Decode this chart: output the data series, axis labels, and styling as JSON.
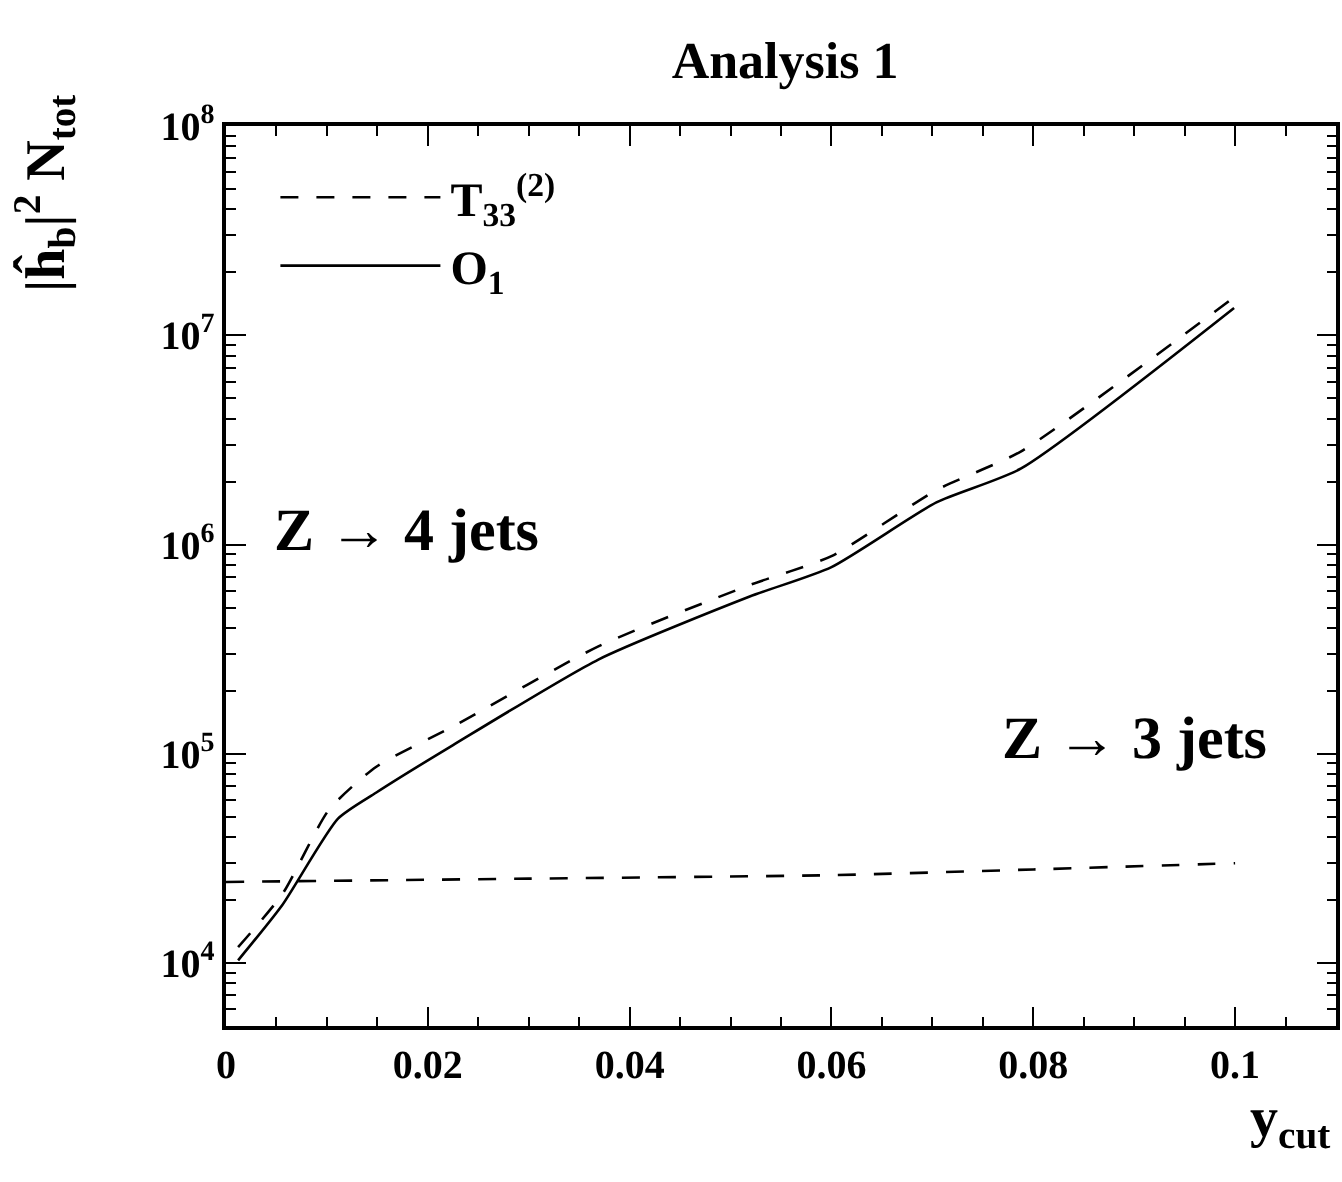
{
  "chart_data": {
    "type": "line",
    "title": "Analysis 1",
    "xlabel": "y$_{cut}$",
    "ylabel": "|ĥ$_{b}$|$^{2}$ N$_{tot}$",
    "annotations": [
      "Z → 4 jets",
      "Z → 3 jets"
    ],
    "series": [
      {
        "name": "T$_{33}$$^{(2)}$",
        "color": "#000000",
        "line_style": "dashed",
        "x": [
          0.0012,
          0.0056,
          0.0102,
          0.0149,
          0.0225,
          0.0369,
          0.0519,
          0.06,
          0.0704,
          0.0788,
          0.0999
        ],
        "values": [
          11900,
          21400,
          54000,
          86700,
          135000,
          326000,
          640000,
          880000,
          1820000,
          2790000,
          15200000
        ]
      },
      {
        "name": "O$_{1}$",
        "color": "#000000",
        "line_style": "solid",
        "x": [
          0.0012,
          0.0056,
          0.0111,
          0.0149,
          0.0225,
          0.0369,
          0.0519,
          0.06,
          0.0704,
          0.0788,
          0.0999
        ],
        "values": [
          10300,
          19000,
          49000,
          65300,
          110000,
          282000,
          564000,
          780000,
          1590000,
          2310000,
          13500000
        ]
      },
      {
        "color": "#000000",
        "line_style": "dashed",
        "x": [
          0,
          0.03,
          0.06,
          0.08,
          0.1
        ],
        "values": [
          24400,
          25300,
          26300,
          28000,
          30000
        ]
      }
    ],
    "xlim": [
      0,
      0.11
    ],
    "xticks": [
      0,
      0.02,
      0.04,
      0.06,
      0.08,
      0.1
    ],
    "ylim": [
      5000,
      100000000
    ],
    "yticks": [
      {
        "value": 10000,
        "label": "10$^{4}$"
      },
      {
        "value": 100000,
        "label": "10$^{5}$"
      },
      {
        "value": 1000000,
        "label": "10$^{6}$"
      },
      {
        "value": 10000000,
        "label": "10$^{7}$"
      },
      {
        "value": 100000000,
        "label": "10$^{8}$"
      }
    ],
    "log": "y",
    "grid": false,
    "legend": "top left",
    "marker": "none"
  }
}
